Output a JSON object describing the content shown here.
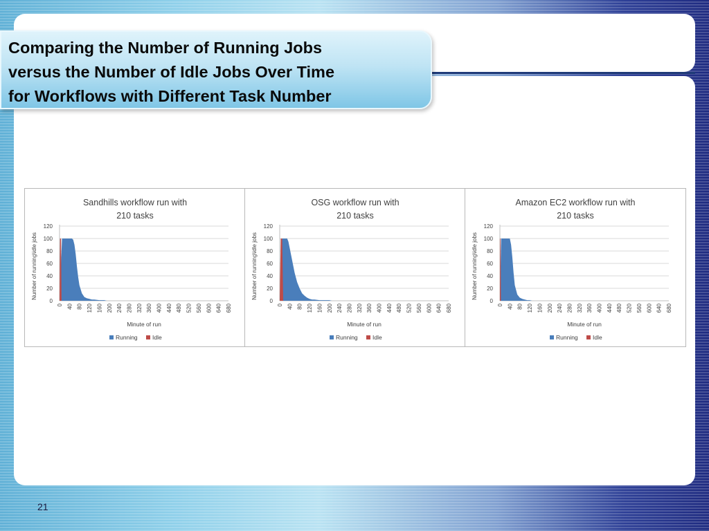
{
  "slide": {
    "title_lines": [
      "Comparing the Number of Running Jobs",
      "versus the Number of Idle Jobs Over Time",
      "for Workflows with Different Task Number"
    ],
    "page_number": "21"
  },
  "colors": {
    "running": "#4a7ebb",
    "idle": "#be4b48",
    "grid": "#d9d9d9",
    "text": "#404040"
  },
  "chart_data": [
    {
      "type": "area",
      "title_lines": [
        "Sandhills workflow run with",
        "210 tasks"
      ],
      "xlabel": "Minute of run",
      "ylabel": "Number of running\\idle jobs",
      "xlim": [
        0,
        680
      ],
      "ylim": [
        0,
        120
      ],
      "x_ticks": [
        "0",
        "40",
        "80",
        "120",
        "160",
        "200",
        "240",
        "280",
        "320",
        "360",
        "400",
        "440",
        "480",
        "520",
        "560",
        "600",
        "640",
        "680"
      ],
      "y_ticks": [
        "0",
        "20",
        "40",
        "60",
        "80",
        "100",
        "120"
      ],
      "legend": [
        "Running",
        "Idle"
      ],
      "series": [
        {
          "name": "Running",
          "x": [
            0,
            10,
            20,
            40,
            50,
            55,
            60,
            65,
            70,
            75,
            80,
            90,
            100,
            110,
            120,
            130,
            140,
            160,
            180,
            190,
            200
          ],
          "values": [
            0,
            100,
            100,
            100,
            100,
            98,
            90,
            75,
            55,
            38,
            25,
            12,
            6,
            4,
            3,
            2,
            2,
            1,
            1,
            0,
            0
          ]
        },
        {
          "name": "Idle",
          "x": [
            0,
            2,
            4,
            6,
            8
          ],
          "values": [
            0,
            100,
            100,
            100,
            0
          ]
        }
      ]
    },
    {
      "type": "area",
      "title_lines": [
        "OSG workflow run with",
        "210 tasks"
      ],
      "xlabel": "Minute of run",
      "ylabel": "Number of running\\idle jobs",
      "xlim": [
        0,
        680
      ],
      "ylim": [
        0,
        120
      ],
      "x_ticks": [
        "0",
        "40",
        "80",
        "120",
        "160",
        "200",
        "240",
        "280",
        "320",
        "360",
        "400",
        "440",
        "480",
        "520",
        "560",
        "600",
        "640",
        "680"
      ],
      "y_ticks": [
        "0",
        "20",
        "40",
        "60",
        "80",
        "100",
        "120"
      ],
      "legend": [
        "Running",
        "Idle"
      ],
      "series": [
        {
          "name": "Running",
          "x": [
            0,
            10,
            20,
            30,
            35,
            40,
            50,
            60,
            70,
            80,
            90,
            100,
            110,
            120,
            130,
            140,
            160,
            180,
            200,
            210
          ],
          "values": [
            0,
            100,
            100,
            100,
            95,
            85,
            65,
            45,
            30,
            20,
            12,
            8,
            5,
            3,
            2,
            2,
            1,
            1,
            1,
            0
          ]
        },
        {
          "name": "Idle",
          "x": [
            0,
            4,
            7,
            10,
            14
          ],
          "values": [
            0,
            100,
            100,
            100,
            0
          ]
        }
      ]
    },
    {
      "type": "area",
      "title_lines": [
        "Amazon EC2 workflow run with",
        "210 tasks"
      ],
      "xlabel": "Minute of run",
      "ylabel": "Number of running\\idle jobs",
      "xlim": [
        0,
        680
      ],
      "ylim": [
        0,
        120
      ],
      "x_ticks": [
        "0",
        "40",
        "80",
        "120",
        "160",
        "200",
        "240",
        "280",
        "320",
        "360",
        "400",
        "440",
        "480",
        "520",
        "560",
        "600",
        "640",
        "680"
      ],
      "y_ticks": [
        "0",
        "20",
        "40",
        "60",
        "80",
        "100",
        "120"
      ],
      "legend": [
        "Running",
        "Idle"
      ],
      "series": [
        {
          "name": "Running",
          "x": [
            0,
            5,
            10,
            20,
            30,
            40,
            45,
            50,
            55,
            60,
            70,
            80,
            90,
            100,
            110,
            120,
            130
          ],
          "values": [
            0,
            100,
            100,
            100,
            100,
            100,
            90,
            70,
            45,
            25,
            10,
            5,
            3,
            2,
            1,
            1,
            0
          ]
        },
        {
          "name": "Idle",
          "x": [
            0,
            1,
            2,
            3,
            4
          ],
          "values": [
            0,
            100,
            100,
            100,
            0
          ]
        }
      ]
    }
  ]
}
